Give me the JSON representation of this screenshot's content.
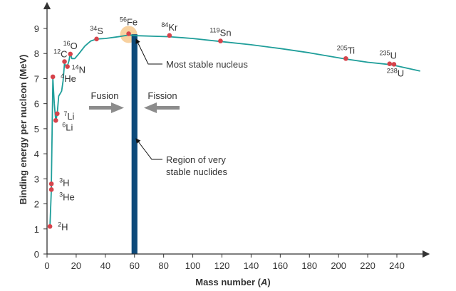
{
  "chart_data": {
    "type": "line",
    "xlabel": "Mass number",
    "xlabel_symbol": "A",
    "ylabel": "Binding energy per nucleon (MeV)",
    "xlim": [
      0,
      260
    ],
    "ylim": [
      0,
      9.5
    ],
    "xticks": [
      0,
      20,
      40,
      60,
      80,
      100,
      120,
      140,
      160,
      180,
      200,
      220,
      240
    ],
    "yticks": [
      0,
      1,
      2,
      3,
      4,
      5,
      6,
      7,
      8,
      9
    ],
    "grid": false,
    "series": [
      {
        "curve": [
          [
            2,
            1.1
          ],
          [
            3,
            2.6
          ],
          [
            3,
            2.8
          ],
          [
            4,
            7.0
          ],
          [
            5,
            6.0
          ],
          [
            6,
            5.3
          ],
          [
            7,
            5.6
          ],
          [
            8,
            6.3
          ],
          [
            10,
            6.5
          ],
          [
            11,
            6.9
          ],
          [
            12,
            7.6
          ],
          [
            13,
            7.5
          ],
          [
            14,
            7.5
          ],
          [
            15,
            7.7
          ],
          [
            16,
            8.0
          ],
          [
            17,
            7.8
          ],
          [
            19,
            7.8
          ],
          [
            22,
            8.0
          ],
          [
            26,
            8.3
          ],
          [
            30,
            8.5
          ],
          [
            34,
            8.58
          ],
          [
            40,
            8.6
          ],
          [
            50,
            8.68
          ],
          [
            56,
            8.74
          ],
          [
            62,
            8.71
          ],
          [
            84,
            8.67
          ],
          [
            100,
            8.6
          ],
          [
            119,
            8.48
          ],
          [
            140,
            8.35
          ],
          [
            160,
            8.2
          ],
          [
            180,
            8.03
          ],
          [
            205,
            7.78
          ],
          [
            220,
            7.65
          ],
          [
            235,
            7.56
          ],
          [
            238,
            7.53
          ],
          [
            256,
            7.3
          ]
        ]
      }
    ],
    "points": [
      {
        "A": 2,
        "B": 1.1,
        "sup": "2",
        "sym": "H"
      },
      {
        "A": 3,
        "B": 2.57,
        "sup": "3",
        "sym": "He"
      },
      {
        "A": 3,
        "B": 2.8,
        "sup": "3",
        "sym": "H"
      },
      {
        "A": 4,
        "B": 7.07,
        "sup": "4",
        "sym": "He"
      },
      {
        "A": 6,
        "B": 5.33,
        "sup": "6",
        "sym": "Li"
      },
      {
        "A": 7,
        "B": 5.6,
        "sup": "7",
        "sym": "Li"
      },
      {
        "A": 12,
        "B": 7.68,
        "sup": "12",
        "sym": "C"
      },
      {
        "A": 14,
        "B": 7.48,
        "sup": "14",
        "sym": "N"
      },
      {
        "A": 16,
        "B": 7.98,
        "sup": "16",
        "sym": "O"
      },
      {
        "A": 34,
        "B": 8.58,
        "sup": "34",
        "sym": "S"
      },
      {
        "A": 56,
        "B": 8.79,
        "sup": "56",
        "sym": "Fe"
      },
      {
        "A": 84,
        "B": 8.72,
        "sup": "84",
        "sym": "Kr"
      },
      {
        "A": 119,
        "B": 8.5,
        "sup": "119",
        "sym": "Sn"
      },
      {
        "A": 205,
        "B": 7.8,
        "sup": "205",
        "sym": "Ti"
      },
      {
        "A": 235,
        "B": 7.59,
        "sup": "235",
        "sym": "U"
      },
      {
        "A": 238,
        "B": 7.57,
        "sup": "238",
        "sym": "U"
      }
    ],
    "stable_region": {
      "from": 58,
      "to": 62
    },
    "annotations": {
      "most_stable": "Most stable nucleus",
      "region_line1": "Region of very",
      "region_line2": "stable nuclides",
      "fusion": "Fusion",
      "fission": "Fission"
    },
    "colors": {
      "curve": "#1f9e9a",
      "point": "#d6434b",
      "highlight": "#f7c98e",
      "band": "#0d4a7a",
      "arrow": "#8c8c8c",
      "axis": "#333333"
    }
  }
}
